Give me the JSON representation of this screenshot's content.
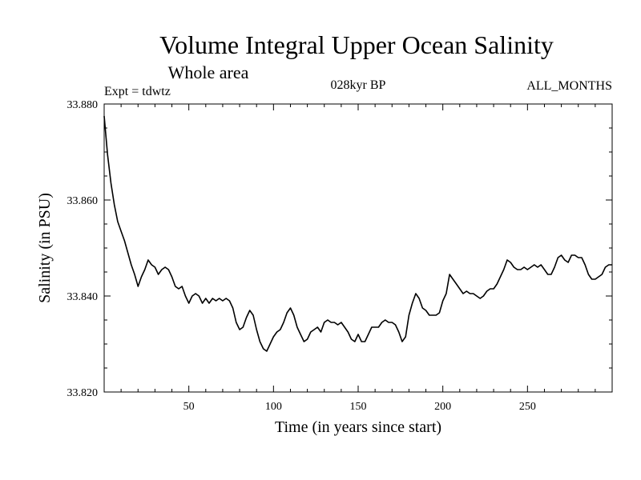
{
  "chart_data": {
    "type": "line",
    "title": "Volume Integral Upper Ocean Salinity",
    "subtitle": "Whole area",
    "experiment": "Expt = tdwtz",
    "period": "028kyr BP",
    "months": "ALL_MONTHS",
    "xlabel": "Time (in years since start)",
    "ylabel": "Salinity (in PSU)",
    "xlim": [
      0,
      300
    ],
    "ylim": [
      33.82,
      33.88
    ],
    "x_ticks": [
      50,
      100,
      150,
      200,
      250
    ],
    "x_tick_labels": [
      "50",
      "100",
      "150",
      "200",
      "250"
    ],
    "y_ticks": [
      33.82,
      33.84,
      33.86,
      33.88
    ],
    "y_tick_labels": [
      "33.820",
      "33.840",
      "33.860",
      "33.880"
    ],
    "grid": false,
    "series": [
      {
        "name": "salinity",
        "x": [
          0,
          2,
          4,
          6,
          8,
          10,
          12,
          14,
          16,
          18,
          20,
          22,
          24,
          26,
          28,
          30,
          32,
          34,
          36,
          38,
          40,
          42,
          44,
          46,
          48,
          50,
          52,
          54,
          56,
          58,
          60,
          62,
          64,
          66,
          68,
          70,
          72,
          74,
          76,
          78,
          80,
          82,
          84,
          86,
          88,
          90,
          92,
          94,
          96,
          98,
          100,
          102,
          104,
          106,
          108,
          110,
          112,
          114,
          116,
          118,
          120,
          122,
          124,
          126,
          128,
          130,
          132,
          134,
          136,
          138,
          140,
          142,
          144,
          146,
          148,
          150,
          152,
          154,
          156,
          158,
          160,
          162,
          164,
          166,
          168,
          170,
          172,
          174,
          176,
          178,
          180,
          182,
          184,
          186,
          188,
          190,
          192,
          194,
          196,
          198,
          200,
          202,
          204,
          206,
          208,
          210,
          212,
          214,
          216,
          218,
          220,
          222,
          224,
          226,
          228,
          230,
          232,
          234,
          236,
          238,
          240,
          242,
          244,
          246,
          248,
          250,
          252,
          254,
          256,
          258,
          260,
          262,
          264,
          266,
          268,
          270,
          272,
          274,
          276,
          278,
          280,
          282,
          284,
          286,
          288,
          290,
          292,
          294,
          296,
          298,
          300
        ],
        "values": [
          33.8775,
          33.8695,
          33.8635,
          33.859,
          33.8555,
          33.8535,
          33.8515,
          33.849,
          33.8465,
          33.8445,
          33.842,
          33.844,
          33.8455,
          33.8475,
          33.8465,
          33.846,
          33.8445,
          33.8455,
          33.846,
          33.8455,
          33.844,
          33.842,
          33.8415,
          33.842,
          33.84,
          33.8385,
          33.84,
          33.8405,
          33.84,
          33.8385,
          33.8395,
          33.8385,
          33.8395,
          33.839,
          33.8395,
          33.839,
          33.8395,
          33.839,
          33.8375,
          33.8345,
          33.833,
          33.8335,
          33.8355,
          33.837,
          33.836,
          33.833,
          33.8305,
          33.829,
          33.8285,
          33.83,
          33.8315,
          33.8325,
          33.833,
          33.8345,
          33.8365,
          33.8375,
          33.836,
          33.8335,
          33.832,
          33.8305,
          33.831,
          33.8325,
          33.833,
          33.8335,
          33.8325,
          33.8345,
          33.835,
          33.8345,
          33.8345,
          33.834,
          33.8345,
          33.8335,
          33.8325,
          33.831,
          33.8305,
          33.832,
          33.8305,
          33.8305,
          33.832,
          33.8335,
          33.8335,
          33.8335,
          33.8345,
          33.835,
          33.8345,
          33.8345,
          33.834,
          33.8325,
          33.8305,
          33.8315,
          33.836,
          33.8385,
          33.8405,
          33.8395,
          33.8375,
          33.837,
          33.836,
          33.836,
          33.836,
          33.8365,
          33.839,
          33.8405,
          33.8445,
          33.8435,
          33.8425,
          33.8415,
          33.8405,
          33.841,
          33.8405,
          33.8405,
          33.84,
          33.8395,
          33.84,
          33.841,
          33.8415,
          33.8415,
          33.8425,
          33.844,
          33.8455,
          33.8475,
          33.847,
          33.846,
          33.8455,
          33.8455,
          33.846,
          33.8455,
          33.846,
          33.8465,
          33.846,
          33.8465,
          33.8455,
          33.8445,
          33.8445,
          33.846,
          33.848,
          33.8485,
          33.8475,
          33.847,
          33.8485,
          33.8485,
          33.848,
          33.848,
          33.8465,
          33.8445,
          33.8435,
          33.8435,
          33.844,
          33.8445,
          33.846,
          33.8465,
          33.8465
        ]
      }
    ]
  }
}
